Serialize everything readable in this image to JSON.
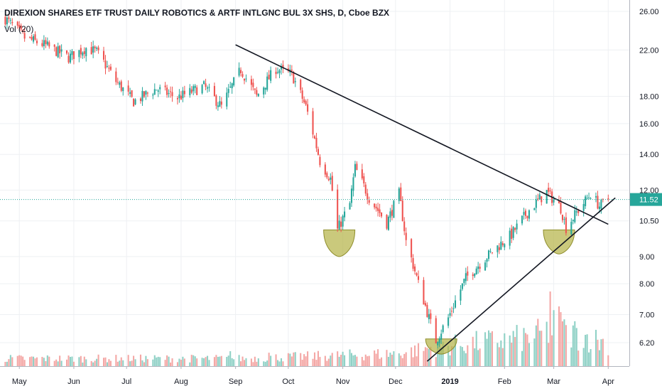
{
  "header": {
    "title": "DIREXION SHARES ETF TRUST DAILY ROBOTICS & ARTF INTLGNC BUL 3X SHS, D, Cboe BZX",
    "volume_label": "Vol (20)"
  },
  "colors": {
    "up": "#26a69a",
    "down": "#ef5350",
    "vol_up": "#8fd1c6",
    "vol_down": "#f4a7a5",
    "last_price": "#26a69a",
    "trendline": "#131722",
    "marker_fill": "#b5b44a",
    "marker_stroke": "#8f8e2c"
  },
  "chart_data": {
    "type": "candlestick",
    "y_scale": "log",
    "ylim": [
      5.7,
      27.0
    ],
    "last_price": 11.52,
    "last_price_label": "11.52",
    "price_ticks": [
      {
        "value": 26.0,
        "label": "26.00"
      },
      {
        "value": 22.0,
        "label": "22.00"
      },
      {
        "value": 18.0,
        "label": "18.00"
      },
      {
        "value": 16.0,
        "label": "16.00"
      },
      {
        "value": 14.0,
        "label": "14.00"
      },
      {
        "value": 12.0,
        "label": "12.00"
      },
      {
        "value": 10.5,
        "label": "10.50"
      },
      {
        "value": 9.0,
        "label": "9.00"
      },
      {
        "value": 8.0,
        "label": "8.00"
      },
      {
        "value": 7.0,
        "label": "7.00"
      },
      {
        "value": 6.2,
        "label": "6.20"
      }
    ],
    "date_ticks": [
      {
        "date": "2018-05-01",
        "label": "May"
      },
      {
        "date": "2018-06-01",
        "label": "Jun"
      },
      {
        "date": "2018-07-01",
        "label": "Jul"
      },
      {
        "date": "2018-08-01",
        "label": "Aug"
      },
      {
        "date": "2018-09-01",
        "label": "Sep"
      },
      {
        "date": "2018-10-01",
        "label": "Oct"
      },
      {
        "date": "2018-11-01",
        "label": "Nov"
      },
      {
        "date": "2018-12-01",
        "label": "Dec"
      },
      {
        "date": "2019-01-01",
        "label": "2019"
      },
      {
        "date": "2019-02-01",
        "label": "Feb"
      },
      {
        "date": "2019-03-01",
        "label": "Mar"
      },
      {
        "date": "2019-04-01",
        "label": "Apr"
      }
    ],
    "date_range": [
      "2018-04-20",
      "2019-04-13"
    ],
    "price_anchors": [
      [
        "2018-04-23",
        25.2
      ],
      [
        "2018-05-04",
        23.2
      ],
      [
        "2018-05-15",
        22.5
      ],
      [
        "2018-05-29",
        21.3
      ],
      [
        "2018-06-08",
        22.2
      ],
      [
        "2018-06-14",
        21.8
      ],
      [
        "2018-06-25",
        19.2
      ],
      [
        "2018-07-05",
        17.6
      ],
      [
        "2018-07-18",
        18.6
      ],
      [
        "2018-07-30",
        17.9
      ],
      [
        "2018-08-14",
        18.8
      ],
      [
        "2018-08-24",
        17.2
      ],
      [
        "2018-09-04",
        20.2
      ],
      [
        "2018-09-13",
        18.0
      ],
      [
        "2018-09-24",
        20.3
      ],
      [
        "2018-10-03",
        19.8
      ],
      [
        "2018-10-11",
        17.2
      ],
      [
        "2018-10-19",
        13.6
      ],
      [
        "2018-10-25",
        12.6
      ],
      [
        "2018-10-29",
        10.1
      ],
      [
        "2018-11-05",
        11.3
      ],
      [
        "2018-11-08",
        13.2
      ],
      [
        "2018-11-16",
        11.6
      ],
      [
        "2018-11-26",
        10.4
      ],
      [
        "2018-12-03",
        11.8
      ],
      [
        "2018-12-07",
        9.6
      ],
      [
        "2018-12-14",
        8.0
      ],
      [
        "2018-12-20",
        6.9
      ],
      [
        "2018-12-24",
        6.25
      ],
      [
        "2018-12-31",
        6.9
      ],
      [
        "2019-01-10",
        8.2
      ],
      [
        "2019-01-22",
        9.0
      ],
      [
        "2019-02-05",
        9.9
      ],
      [
        "2019-02-15",
        11.0
      ],
      [
        "2019-02-25",
        11.9
      ],
      [
        "2019-03-05",
        11.1
      ],
      [
        "2019-03-08",
        10.2
      ],
      [
        "2019-03-15",
        11.0
      ],
      [
        "2019-03-22",
        11.8
      ],
      [
        "2019-03-27",
        11.2
      ],
      [
        "2019-04-01",
        11.52
      ]
    ],
    "volume_anchors": [
      [
        "2018-04-23",
        0.12
      ],
      [
        "2018-09-05",
        0.12
      ],
      [
        "2018-12-03",
        0.2
      ],
      [
        "2018-12-24",
        0.3
      ],
      [
        "2019-01-10",
        0.35
      ],
      [
        "2019-02-15",
        0.45
      ],
      [
        "2019-03-05",
        0.6
      ],
      [
        "2019-03-15",
        0.5
      ],
      [
        "2019-04-01",
        0.35
      ]
    ],
    "volume_spikes": [
      [
        "2018-08-29",
        0.2
      ],
      [
        "2018-09-20",
        0.18
      ],
      [
        "2019-02-27",
        1.0
      ],
      [
        "2019-03-01",
        0.75
      ],
      [
        "2019-03-04",
        0.8
      ],
      [
        "2019-03-06",
        0.6
      ],
      [
        "2019-03-08",
        0.55
      ]
    ],
    "trendlines": [
      {
        "from": [
          "2018-09-01",
          22.5
        ],
        "to": [
          "2019-04-01",
          10.35
        ]
      },
      {
        "from": [
          "2018-12-19",
          5.72
        ],
        "to": [
          "2019-04-05",
          11.6
        ]
      }
    ],
    "markers": [
      {
        "center": [
          "2018-10-30",
          10.1
        ],
        "depth": 9.0
      },
      {
        "center": [
          "2018-12-27",
          6.3
        ],
        "depth": 5.9
      },
      {
        "center": [
          "2019-03-04",
          10.1
        ],
        "depth": 9.1
      }
    ]
  }
}
